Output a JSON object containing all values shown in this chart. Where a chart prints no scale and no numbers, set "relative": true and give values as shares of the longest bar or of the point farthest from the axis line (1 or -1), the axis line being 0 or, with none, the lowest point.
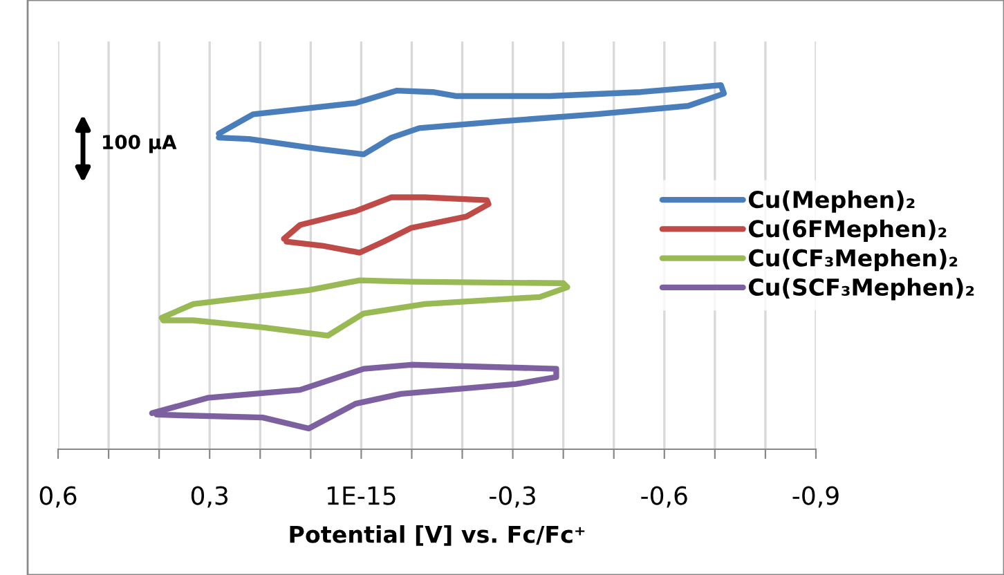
{
  "chart_data": {
    "type": "line",
    "relative": true,
    "xlabel": "Potential [V] vs. Fc/Fc⁺",
    "xlim": [
      0.6,
      -0.9
    ],
    "xticks": [
      {
        "value": 0.6,
        "label": "0,6"
      },
      {
        "value": 0.5,
        "label": null
      },
      {
        "value": 0.4,
        "label": null
      },
      {
        "value": 0.3,
        "label": "0,3"
      },
      {
        "value": 0.2,
        "label": null
      },
      {
        "value": 0.1,
        "label": null
      },
      {
        "value": 0,
        "label": "1E-15"
      },
      {
        "value": -0.1,
        "label": null
      },
      {
        "value": -0.2,
        "label": null
      },
      {
        "value": -0.3,
        "label": "-0,3"
      },
      {
        "value": -0.4,
        "label": null
      },
      {
        "value": -0.5,
        "label": null
      },
      {
        "value": -0.6,
        "label": "-0,6"
      },
      {
        "value": -0.7,
        "label": null
      },
      {
        "value": -0.8,
        "label": null
      },
      {
        "value": -0.9,
        "label": "-0,9"
      }
    ],
    "grid": "x",
    "legend": "right",
    "marker": "none",
    "line_style": "solid",
    "annotations": [
      "100 µA"
    ],
    "series": [
      {
        "name": "Cu(Mephen)₂",
        "color": "#4a7ebb",
        "x": [
          0.282,
          0.214,
          0.011,
          -0.071,
          -0.142,
          -0.189,
          -0.373,
          -0.553,
          -0.712,
          -0.718,
          -0.647,
          -0.463,
          -0.279,
          -0.115,
          -0.06,
          -0.005,
          0.085,
          0.222,
          0.282
        ],
        "values": [
          0.867,
          0.92,
          0.951,
          0.985,
          0.981,
          0.97,
          0.97,
          0.981,
          1.0,
          0.977,
          0.943,
          0.92,
          0.901,
          0.882,
          0.856,
          0.81,
          0.825,
          0.852,
          0.856
        ]
      },
      {
        "name": "Cu(6FMephen)₂",
        "color": "#be4b48",
        "x": [
          0.153,
          0.121,
          0.011,
          -0.06,
          -0.126,
          -0.249,
          -0.252,
          -0.208,
          -0.099,
          -0.044,
          0.003,
          0.077,
          0.148
        ],
        "values": [
          0.578,
          0.616,
          0.654,
          0.692,
          0.692,
          0.684,
          0.673,
          0.639,
          0.608,
          0.57,
          0.54,
          0.559,
          0.57
        ]
      },
      {
        "name": "Cu(CF₃Mephen)₂",
        "color": "#98b954",
        "x": [
          0.395,
          0.332,
          0.104,
          0.003,
          -0.099,
          -0.4,
          -0.408,
          -0.353,
          -0.126,
          -0.005,
          0.066,
          0.195,
          0.332,
          0.392
        ],
        "values": [
          0.361,
          0.399,
          0.437,
          0.464,
          0.46,
          0.456,
          0.445,
          0.418,
          0.399,
          0.373,
          0.312,
          0.335,
          0.354,
          0.354
        ]
      },
      {
        "name": "Cu(SCF₃Mephen)₂",
        "color": "#7d60a0",
        "x": [
          0.414,
          0.304,
          0.121,
          -0.005,
          -0.099,
          -0.386,
          -0.386,
          -0.307,
          -0.079,
          0.011,
          0.104,
          0.195,
          0.405
        ],
        "values": [
          0.099,
          0.141,
          0.163,
          0.221,
          0.232,
          0.221,
          0.198,
          0.179,
          0.152,
          0.125,
          0.057,
          0.087,
          0.095
        ]
      }
    ]
  }
}
